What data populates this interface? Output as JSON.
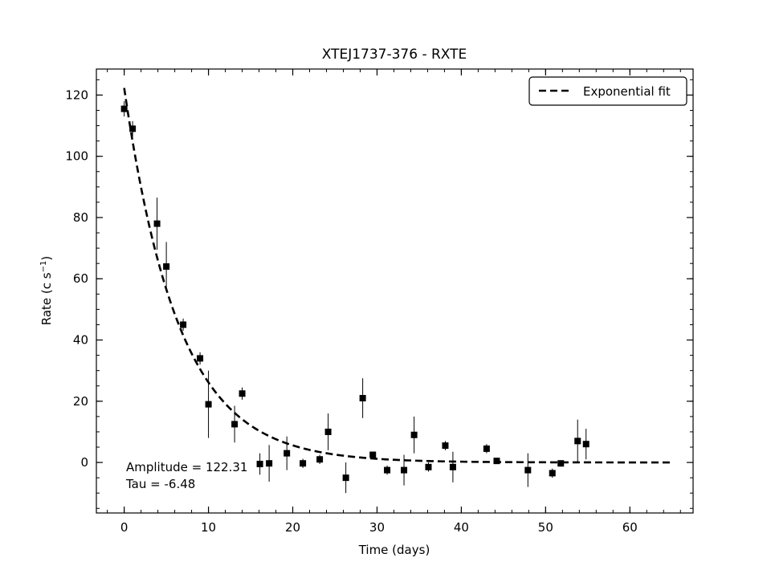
{
  "chart_data": {
    "type": "scatter",
    "title": "XTEJ1737-376 - RXTE",
    "xlabel": "Time (days)",
    "ylabel_base": "Rate (c s",
    "ylabel_exp": "−1",
    "ylabel_close": ")",
    "xlim": [
      -3.3,
      67.5
    ],
    "ylim": [
      -16.5,
      128.5
    ],
    "xticks": [
      0,
      10,
      20,
      30,
      40,
      50,
      60
    ],
    "yticks": [
      0,
      20,
      40,
      60,
      80,
      100,
      120
    ],
    "x_minor_step": 2,
    "y_minor_step": 5,
    "legend": {
      "label": "Exponential fit",
      "placement": "top-right"
    },
    "fit": {
      "amplitude": 122.31,
      "tau": -6.48,
      "x_start": 0,
      "x_end": 64.9
    },
    "annotation": {
      "line1": "Amplitude = 122.31",
      "line2": "Tau = -6.48"
    },
    "series": [
      {
        "points": [
          {
            "x": 0.0,
            "y": 115.5,
            "err": 2.5
          },
          {
            "x": 1.0,
            "y": 109.0,
            "err": 2.5
          },
          {
            "x": 3.9,
            "y": 78.0,
            "err": 8.5
          },
          {
            "x": 5.0,
            "y": 64.0,
            "err": 8.0
          },
          {
            "x": 7.0,
            "y": 45.0,
            "err": 2.0
          },
          {
            "x": 9.0,
            "y": 34.0,
            "err": 2.0
          },
          {
            "x": 10.0,
            "y": 19.0,
            "err": 11.0
          },
          {
            "x": 13.1,
            "y": 12.5,
            "err": 6.0
          },
          {
            "x": 14.0,
            "y": 22.5,
            "err": 2.0
          },
          {
            "x": 16.1,
            "y": -0.5,
            "err": 3.5
          },
          {
            "x": 17.2,
            "y": -0.3,
            "err": 6.0
          },
          {
            "x": 19.3,
            "y": 3.0,
            "err": 5.5
          },
          {
            "x": 21.2,
            "y": -0.3,
            "err": 1.5
          },
          {
            "x": 23.2,
            "y": 1.0,
            "err": 1.5
          },
          {
            "x": 24.2,
            "y": 10.0,
            "err": 6.0
          },
          {
            "x": 26.3,
            "y": -5.0,
            "err": 5.0
          },
          {
            "x": 28.3,
            "y": 21.0,
            "err": 6.5
          },
          {
            "x": 29.5,
            "y": 2.5,
            "err": 1.0
          },
          {
            "x": 31.2,
            "y": -2.5,
            "err": 1.5
          },
          {
            "x": 33.2,
            "y": -2.5,
            "err": 5.0
          },
          {
            "x": 34.4,
            "y": 9.0,
            "err": 6.0
          },
          {
            "x": 36.1,
            "y": -1.5,
            "err": 1.5
          },
          {
            "x": 38.1,
            "y": 5.5,
            "err": 1.5
          },
          {
            "x": 39.0,
            "y": -1.5,
            "err": 5.0
          },
          {
            "x": 43.0,
            "y": 4.5,
            "err": 1.5
          },
          {
            "x": 44.2,
            "y": 0.5,
            "err": 1.0
          },
          {
            "x": 47.9,
            "y": -2.5,
            "err": 5.5
          },
          {
            "x": 50.8,
            "y": -3.5,
            "err": 1.5
          },
          {
            "x": 51.8,
            "y": -0.3,
            "err": 1.0
          },
          {
            "x": 53.8,
            "y": 7.0,
            "err": 7.0
          },
          {
            "x": 54.8,
            "y": 6.0,
            "err": 5.0
          }
        ]
      }
    ]
  }
}
